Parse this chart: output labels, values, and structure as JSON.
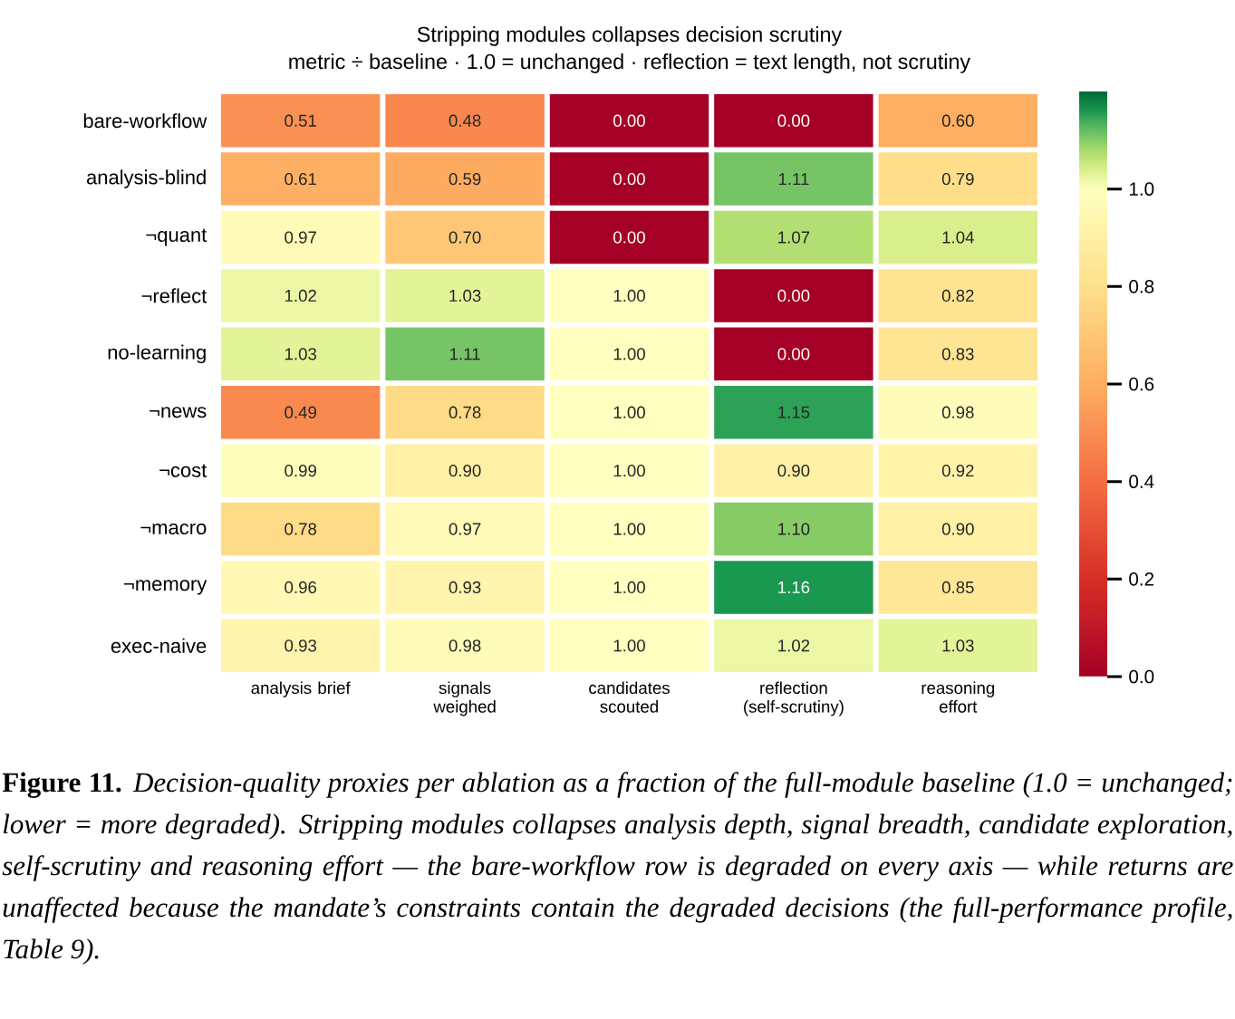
{
  "chart_data": {
    "type": "heatmap",
    "title": "Stripping modules collapses decision scrutiny",
    "subtitle": "metric ÷ baseline · 1.0 = unchanged · reflection = text length, not scrutiny",
    "categories": [
      "analysis brief",
      "signals weighed",
      "candidates scouted",
      "reflection (self-scrutiny)",
      "reasoning effort"
    ],
    "y_categories": [
      "bare-workflow",
      "analysis-blind",
      "¬quant",
      "¬reflect",
      "no-learning",
      "¬news",
      "¬cost",
      "¬macro",
      "¬memory",
      "exec-naive"
    ],
    "cells": [
      [
        0.51,
        0.48,
        0,
        0,
        0.6
      ],
      [
        0.61,
        0.59,
        0,
        1.11,
        0.79
      ],
      [
        0.97,
        0.7,
        0,
        1.07,
        1.04
      ],
      [
        1.02,
        1.03,
        1,
        0,
        0.82
      ],
      [
        1.03,
        1.11,
        1,
        0,
        0.83
      ],
      [
        0.49,
        0.78,
        1,
        1.15,
        0.98
      ],
      [
        0.99,
        0.9,
        1,
        0.9,
        0.92
      ],
      [
        0.78,
        0.97,
        1,
        1.1,
        0.9
      ],
      [
        0.96,
        0.93,
        1,
        1.16,
        0.85
      ],
      [
        0.93,
        0.98,
        1,
        1.02,
        1.03
      ]
    ],
    "cell_labels": [
      [
        "0.51",
        "0.48",
        "0.00",
        "0.00",
        "0.60"
      ],
      [
        "0.61",
        "0.59",
        "0.00",
        "1.11",
        "0.79"
      ],
      [
        "0.97",
        "0.70",
        "0.00",
        "1.07",
        "1.04"
      ],
      [
        "1.02",
        "1.03",
        "1.00",
        "0.00",
        "0.82"
      ],
      [
        "1.03",
        "1.11",
        "1.00",
        "0.00",
        "0.83"
      ],
      [
        "0.49",
        "0.78",
        "1.00",
        "1.15",
        "0.98"
      ],
      [
        "0.99",
        "0.90",
        "1.00",
        "0.90",
        "0.92"
      ],
      [
        "0.78",
        "0.97",
        "1.00",
        "1.10",
        "0.90"
      ],
      [
        "0.96",
        "0.93",
        "1.00",
        "1.16",
        "0.85"
      ],
      [
        "0.93",
        "0.98",
        "1.00",
        "1.02",
        "1.03"
      ]
    ],
    "clim": [
      0,
      1.2
    ],
    "cticks": [
      {
        "value": 0,
        "label": "0.0"
      },
      {
        "value": 0.2,
        "label": "0.2"
      },
      {
        "value": 0.4,
        "label": "0.4"
      },
      {
        "value": 0.6,
        "label": "0.6"
      },
      {
        "value": 0.8,
        "label": "0.8"
      },
      {
        "value": 1.0,
        "label": "1.0"
      }
    ],
    "annotations": [
      "**Figure 11.** *Decision-quality proxies per ablation as a fraction of the full-module baseline (1.0 = unchanged; lower = more degraded). Stripping modules collapses analysis depth, signal breadth, candidate exploration, self-scrutiny and reasoning effort — the bare-workflow row is degraded on every axis — while returns are unaffected because the mandate’s constraints contain the degraded decisions (the full-performance profile, Table 9).*"
    ]
  }
}
